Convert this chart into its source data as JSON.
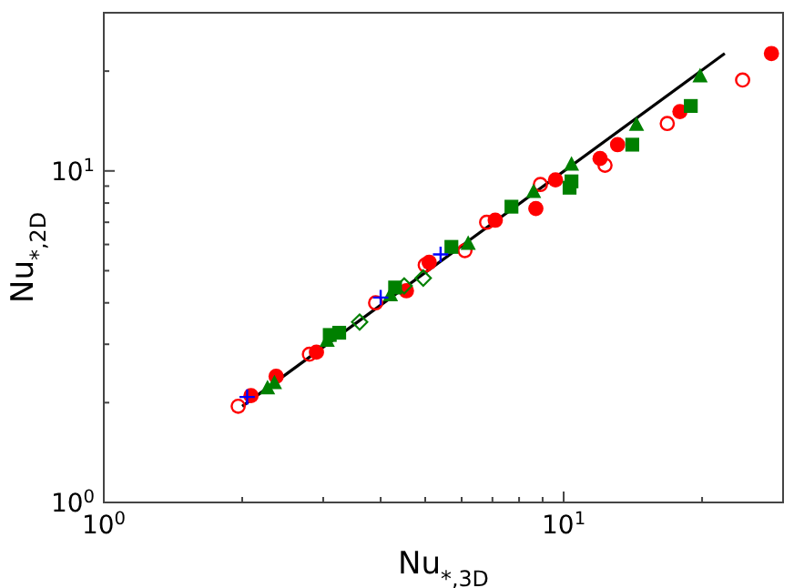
{
  "chart_data": {
    "type": "scatter",
    "xlabel": "Nu$_{*,3D}$",
    "ylabel": "Nu$_{*,2D}$",
    "log": "xy",
    "grid": false,
    "xlim": [
      1,
      30
    ],
    "ylim": [
      1,
      30
    ],
    "xticks": [
      {
        "value": 1,
        "label": "10$^{0}$"
      },
      {
        "value": 2,
        "label": null
      },
      {
        "value": 3,
        "label": null
      },
      {
        "value": 4,
        "label": null
      },
      {
        "value": 5,
        "label": null
      },
      {
        "value": 6,
        "label": null
      },
      {
        "value": 7,
        "label": null
      },
      {
        "value": 8,
        "label": null
      },
      {
        "value": 9,
        "label": null
      },
      {
        "value": 10,
        "label": "10$^{1}$"
      },
      {
        "value": 20,
        "label": null
      },
      {
        "value": 30,
        "label": null
      }
    ],
    "yticks": [
      {
        "value": 1,
        "label": "10$^{0}$"
      },
      {
        "value": 2,
        "label": null
      },
      {
        "value": 3,
        "label": null
      },
      {
        "value": 4,
        "label": null
      },
      {
        "value": 5,
        "label": null
      },
      {
        "value": 6,
        "label": null
      },
      {
        "value": 7,
        "label": null
      },
      {
        "value": 8,
        "label": null
      },
      {
        "value": 9,
        "label": null
      },
      {
        "value": 10,
        "label": "10$^{1}$"
      },
      {
        "value": 20,
        "label": null
      },
      {
        "value": 30,
        "label": null
      }
    ],
    "series": [
      {
        "type": "line",
        "color": "#000000",
        "marker": "none",
        "line_style": "solid",
        "x": [
          2.0,
          22.4
        ],
        "values": [
          1.95,
          22.6
        ]
      },
      {
        "color": "#ff0000",
        "marker": "circle",
        "x": [
          2.09,
          2.37,
          2.9,
          4.55,
          5.1,
          7.1,
          8.7,
          9.6,
          12.0,
          13.1,
          17.9,
          28.3
        ],
        "values": [
          2.1,
          2.4,
          2.84,
          4.35,
          5.3,
          7.1,
          7.7,
          9.4,
          10.9,
          12.0,
          15.1,
          22.6
        ]
      },
      {
        "color": "#ff0000",
        "marker": "circle-open",
        "x": [
          1.96,
          2.8,
          3.9,
          5.0,
          6.1,
          6.8,
          8.9,
          12.3,
          16.8,
          24.5
        ],
        "values": [
          1.95,
          2.8,
          4.0,
          5.2,
          5.75,
          7.0,
          9.1,
          10.4,
          13.9,
          18.8
        ]
      },
      {
        "color": "#008000",
        "marker": "triangle",
        "x": [
          2.27,
          2.35,
          3.06,
          4.2,
          6.2,
          8.6,
          10.4,
          14.4,
          19.8
        ],
        "values": [
          2.2,
          2.28,
          3.06,
          4.2,
          6.0,
          8.6,
          10.4,
          13.7,
          19.2
        ]
      },
      {
        "color": "#008000",
        "marker": "square",
        "x": [
          3.1,
          3.25,
          4.3,
          5.7,
          7.7,
          10.3,
          10.4,
          14.1,
          18.9
        ],
        "values": [
          3.2,
          3.25,
          4.45,
          5.9,
          7.8,
          8.9,
          9.3,
          12.0,
          15.7
        ]
      },
      {
        "color": "#008000",
        "marker": "diamond-open",
        "x": [
          3.6,
          4.5,
          4.95
        ],
        "values": [
          3.5,
          4.5,
          4.75
        ]
      },
      {
        "color": "#0000ff",
        "marker": "cross",
        "x": [
          2.05,
          4.0,
          5.4
        ],
        "values": [
          2.08,
          4.15,
          5.6
        ]
      }
    ]
  }
}
